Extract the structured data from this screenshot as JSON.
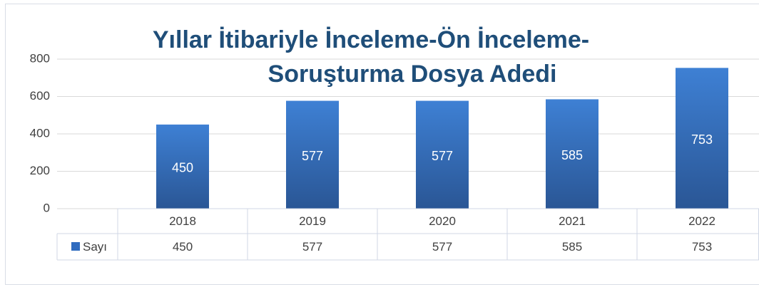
{
  "chart_data": {
    "type": "bar",
    "title": [
      "Yıllar İtibariyle İnceleme-Ön İnceleme-",
      "Soruşturma Dosya Adedi"
    ],
    "categories": [
      "2018",
      "2019",
      "2020",
      "2021",
      "2022"
    ],
    "series": [
      {
        "name": "Sayı",
        "color": "#2f6bbf",
        "values": [
          450,
          577,
          577,
          585,
          753
        ]
      }
    ],
    "ylim": [
      0,
      800
    ],
    "yticks": [
      0,
      200,
      400,
      600,
      800
    ],
    "grid": true,
    "data_table": true
  }
}
